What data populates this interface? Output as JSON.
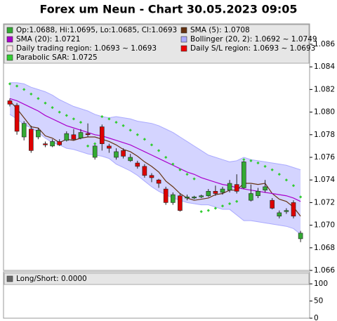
{
  "chart_data": [
    {
      "type": "candlestick",
      "title": "Forex um Neun - Chart 30.05.2023 09:05",
      "ylim": [
        1.066,
        1.0878
      ],
      "yticks": [
        1.066,
        1.068,
        {
          "value": 1.07,
          "label": "1.070"
        },
        1.072,
        1.074,
        1.076,
        1.078,
        {
          "value": 1.08,
          "label": "1.080"
        },
        1.082,
        1.084,
        1.086
      ],
      "series": [
        {
          "name": "Op:1.0688, Hi:1.0695, Lo:1.0685, Cl:1.0693",
          "color": "#33aa33",
          "down_color": "#dd0000",
          "open": [
            1.081,
            1.0806,
            1.0778,
            1.0785,
            1.0778,
            1.0772,
            1.077,
            1.0774,
            1.0775,
            1.078,
            1.0777,
            1.0781,
            1.076,
            1.0787,
            1.077,
            1.076,
            1.0766,
            1.0757,
            1.0755,
            1.0752,
            1.0744,
            1.074,
            1.0732,
            1.072,
            1.0726,
            1.0724,
            1.0724,
            1.0725,
            1.0726,
            1.073,
            1.0729,
            1.0731,
            1.0736,
            1.0733,
            1.0722,
            1.0726,
            1.0731,
            1.0722,
            1.0708,
            1.0712,
            1.072,
            1.0688
          ],
          "high": [
            1.0812,
            1.0808,
            1.0792,
            1.0788,
            1.0786,
            1.0774,
            1.0776,
            1.0776,
            1.0783,
            1.0785,
            1.0785,
            1.079,
            1.0772,
            1.0789,
            1.0772,
            1.0768,
            1.0768,
            1.0763,
            1.0757,
            1.0754,
            1.0746,
            1.0741,
            1.0734,
            1.0729,
            1.0728,
            1.0727,
            1.0726,
            1.0727,
            1.0732,
            1.0735,
            1.0734,
            1.074,
            1.0745,
            1.0757,
            1.0736,
            1.0733,
            1.074,
            1.0724,
            1.0713,
            1.0715,
            1.0722,
            1.0695
          ],
          "low": [
            1.0805,
            1.078,
            1.0775,
            1.0764,
            1.0776,
            1.0769,
            1.0769,
            1.077,
            1.0774,
            1.0775,
            1.0776,
            1.0778,
            1.0758,
            1.0766,
            1.0764,
            1.0758,
            1.0759,
            1.0756,
            1.075,
            1.0742,
            1.0738,
            1.0733,
            1.0718,
            1.0718,
            1.0712,
            1.0722,
            1.0723,
            1.0724,
            1.0725,
            1.0726,
            1.0727,
            1.0729,
            1.0728,
            1.0732,
            1.0721,
            1.0724,
            1.0729,
            1.0714,
            1.0706,
            1.071,
            1.0706,
            1.0685
          ],
          "close": [
            1.0807,
            1.0783,
            1.079,
            1.0766,
            1.0784,
            1.0771,
            1.0774,
            1.0771,
            1.0781,
            1.0776,
            1.0782,
            1.078,
            1.077,
            1.0772,
            1.0768,
            1.0765,
            1.0761,
            1.076,
            1.0752,
            1.0744,
            1.0742,
            1.0737,
            1.072,
            1.0727,
            1.0713,
            1.0725,
            1.0725,
            1.0726,
            1.073,
            1.0728,
            1.0732,
            1.0737,
            1.073,
            1.0756,
            1.0728,
            1.073,
            1.0734,
            1.0715,
            1.0711,
            1.0713,
            1.0708,
            1.0693
          ]
        },
        {
          "name": "SMA (5): 1.0708",
          "color": "#663311",
          "values": [
            1.081,
            1.0803,
            1.0795,
            1.0787,
            1.0786,
            1.0779,
            1.0777,
            1.0773,
            1.0776,
            1.0775,
            1.0777,
            1.0778,
            1.0778,
            1.0776,
            1.0774,
            1.0771,
            1.0767,
            1.0765,
            1.0761,
            1.0756,
            1.0752,
            1.0747,
            1.0739,
            1.0734,
            1.0728,
            1.0724,
            1.0722,
            1.0723,
            1.0724,
            1.0727,
            1.0728,
            1.0731,
            1.0731,
            1.0737,
            1.0737,
            1.0736,
            1.0737,
            1.0728,
            1.0723,
            1.0721,
            1.0716,
            1.0708
          ]
        },
        {
          "name": "SMA (20): 1.0721",
          "color": "#aa00cc",
          "values": [
            1.0812,
            1.081,
            1.0807,
            1.0804,
            1.0801,
            1.0797,
            1.0794,
            1.0791,
            1.0788,
            1.0786,
            1.0784,
            1.0782,
            1.078,
            1.0779,
            1.0777,
            1.0775,
            1.0773,
            1.0771,
            1.0768,
            1.0765,
            1.0762,
            1.0759,
            1.0756,
            1.0753,
            1.075,
            1.0747,
            1.0745,
            1.0742,
            1.074,
            1.0738,
            1.0736,
            1.0735,
            1.0733,
            1.0732,
            1.0731,
            1.073,
            1.0729,
            1.0728,
            1.0727,
            1.0726,
            1.0724,
            1.0721
          ]
        },
        {
          "name": "Bollinger (20, 2): 1.0692 ~ 1.0749",
          "color": "#aaaaff",
          "upper": [
            1.0826,
            1.0826,
            1.0825,
            1.0822,
            1.082,
            1.0818,
            1.0815,
            1.0811,
            1.0808,
            1.0805,
            1.0803,
            1.0801,
            1.0798,
            1.0796,
            1.0795,
            1.0796,
            1.0795,
            1.0794,
            1.0792,
            1.0791,
            1.079,
            1.0788,
            1.0785,
            1.0782,
            1.0778,
            1.0774,
            1.077,
            1.0766,
            1.0762,
            1.076,
            1.0758,
            1.0756,
            1.0757,
            1.076,
            1.0758,
            1.0757,
            1.0756,
            1.0755,
            1.0754,
            1.0753,
            1.0751,
            1.0749
          ],
          "lower": [
            1.0798,
            1.0794,
            1.0789,
            1.0786,
            1.0782,
            1.0777,
            1.0773,
            1.0771,
            1.0768,
            1.0767,
            1.0765,
            1.0763,
            1.0762,
            1.0761,
            1.0759,
            1.0754,
            1.0751,
            1.0748,
            1.0744,
            1.0739,
            1.0734,
            1.073,
            1.0727,
            1.0724,
            1.0722,
            1.072,
            1.0719,
            1.0718,
            1.0718,
            1.0716,
            1.0714,
            1.0714,
            1.0709,
            1.0704,
            1.0704,
            1.0703,
            1.0702,
            1.0701,
            1.07,
            1.0699,
            1.0697,
            1.0692
          ]
        },
        {
          "name": "Daily trading region: 1.0693 ~ 1.0693",
          "color": "#ffe8e8"
        },
        {
          "name": "Daily S/L region: 1.0693 ~ 1.0693",
          "color": "#ee0000"
        },
        {
          "name": "Parabolic SAR: 1.0725",
          "color": "#33cc33",
          "values": [
            1.0825,
            1.0823,
            1.082,
            1.0816,
            1.0812,
            1.0808,
            1.0804,
            1.08,
            1.0797,
            1.0794,
            1.0791,
            1.077,
            1.0772,
            1.0796,
            1.0794,
            1.0791,
            1.0788,
            1.0784,
            1.078,
            1.0776,
            1.0771,
            1.0766,
            1.076,
            1.0754,
            1.0749,
            1.0745,
            1.0741,
            1.0712,
            1.0713,
            1.0715,
            1.0717,
            1.0719,
            1.0721,
            1.0758,
            1.0757,
            1.0755,
            1.0752,
            1.0749,
            1.0745,
            1.074,
            1.0735,
            1.0725
          ]
        }
      ]
    },
    {
      "type": "line",
      "ylim": [
        0,
        135
      ],
      "yticks": [
        0,
        50,
        100
      ],
      "series": [
        {
          "name": "Long/Short: 0.0000",
          "color": "#666666"
        }
      ]
    }
  ]
}
